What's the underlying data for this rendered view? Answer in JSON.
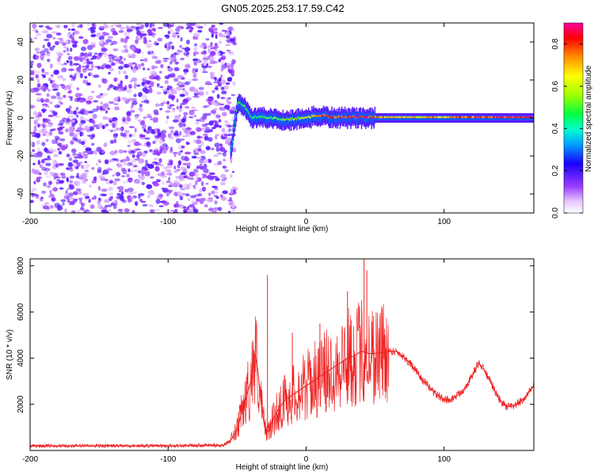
{
  "title": "GN05.2025.253.17.59.C42",
  "colors": {
    "snr_line": "#ee2222",
    "frame": "#000000",
    "background": "#ffffff"
  },
  "chart_data": [
    {
      "type": "heatmap",
      "title": "GN05.2025.253.17.59.C42",
      "xlabel": "Height of straight line (km)",
      "ylabel": "Frequency (Hz)",
      "xlim": [
        -200,
        165
      ],
      "ylim": [
        -50,
        50
      ],
      "xticks": [
        -200,
        -100,
        0,
        100
      ],
      "xtick_labels": [
        "-200",
        "-100",
        "0",
        "100"
      ],
      "yticks": [
        -40,
        -20,
        0,
        20,
        40
      ],
      "ytick_labels": [
        "-40",
        "-20",
        "0",
        "20",
        "40"
      ],
      "noise_region_x": [
        -200,
        -55
      ],
      "signal_ridge": [
        {
          "x": -55,
          "y": -18,
          "amp": 0.45
        },
        {
          "x": -50,
          "y": 8,
          "amp": 0.5
        },
        {
          "x": -45,
          "y": 6,
          "amp": 0.5
        },
        {
          "x": -40,
          "y": 0,
          "amp": 0.45
        },
        {
          "x": -30,
          "y": 0,
          "amp": 0.5
        },
        {
          "x": -20,
          "y": -1,
          "amp": 0.55
        },
        {
          "x": -10,
          "y": -1,
          "amp": 0.55
        },
        {
          "x": 0,
          "y": 0,
          "amp": 0.6
        },
        {
          "x": 10,
          "y": 1,
          "amp": 0.75
        },
        {
          "x": 20,
          "y": 0,
          "amp": 0.8
        },
        {
          "x": 30,
          "y": 0,
          "amp": 0.85
        },
        {
          "x": 45,
          "y": 0,
          "amp": 0.85
        },
        {
          "x": 60,
          "y": 0,
          "amp": 0.65
        },
        {
          "x": 100,
          "y": 0,
          "amp": 0.7
        },
        {
          "x": 130,
          "y": 0,
          "amp": 0.8
        },
        {
          "x": 165,
          "y": 0,
          "amp": 0.9
        }
      ],
      "colorbar": {
        "label": "Normalized spectral amplitude",
        "range": [
          0,
          0.9
        ],
        "ticks": [
          0,
          0.2,
          0.4,
          0.6,
          0.8
        ],
        "tick_labels": [
          "0.0",
          "0.2",
          "0.4",
          "0.6",
          "0.8"
        ]
      }
    },
    {
      "type": "line",
      "xlabel": "Height of straight line (km)",
      "ylabel": "SNR (10 * v/v)",
      "xlim": [
        -200,
        165
      ],
      "ylim": [
        0,
        8300
      ],
      "xticks": [
        -200,
        -100,
        0,
        100
      ],
      "xtick_labels": [
        "-200",
        "-100",
        "0",
        "100"
      ],
      "yticks": [
        2000,
        4000,
        6000,
        8000
      ],
      "ytick_labels": [
        "2000",
        "4000",
        "6000",
        "8000"
      ],
      "series": [
        {
          "name": "SNR",
          "x": [
            -200,
            -150,
            -100,
            -60,
            -55,
            -50,
            -45,
            -40,
            -37,
            -35,
            -33,
            -30,
            -27,
            -25,
            -20,
            -15,
            -10,
            -5,
            0,
            5,
            10,
            15,
            20,
            25,
            30,
            35,
            40,
            45,
            50,
            55,
            60,
            65,
            70,
            75,
            80,
            85,
            90,
            95,
            100,
            105,
            110,
            115,
            120,
            125,
            130,
            135,
            140,
            145,
            150,
            155,
            160,
            165
          ],
          "y": [
            200,
            200,
            200,
            230,
            400,
            900,
            2000,
            3000,
            4200,
            3500,
            2200,
            1000,
            800,
            1200,
            1800,
            2200,
            2400,
            2600,
            2800,
            3000,
            3200,
            3400,
            3600,
            3800,
            4000,
            4100,
            4300,
            4200,
            4200,
            4250,
            4300,
            4300,
            4100,
            3800,
            3400,
            3000,
            2700,
            2400,
            2200,
            2200,
            2400,
            2700,
            3200,
            3800,
            3400,
            2800,
            2200,
            1900,
            1900,
            2100,
            2400,
            2800
          ]
        }
      ],
      "spikes": [
        {
          "x": -28,
          "y": 7600
        },
        {
          "x": 30,
          "y": 6900
        },
        {
          "x": 42,
          "y": 8300
        },
        {
          "x": 44,
          "y": 7800
        },
        {
          "x": 10,
          "y": 5500
        },
        {
          "x": -10,
          "y": 5100
        }
      ]
    }
  ]
}
